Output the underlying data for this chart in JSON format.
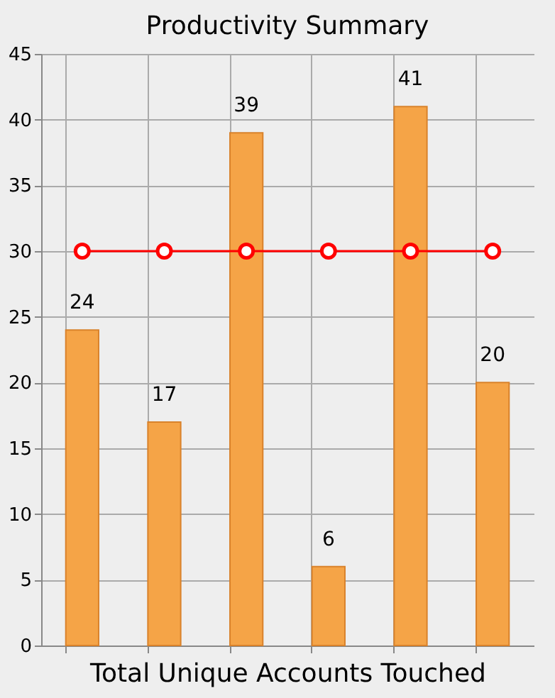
{
  "chart_data": {
    "type": "bar",
    "title": "Productivity Summary",
    "xlabel": "Total Unique Accounts Touched",
    "categories": [
      null,
      null,
      null,
      null,
      null,
      null
    ],
    "series": [
      {
        "color": "#f5a447",
        "values": [
          24,
          17,
          39,
          6,
          41,
          20
        ],
        "value_labels": [
          "24",
          "17",
          "39",
          "6",
          "41",
          "20"
        ]
      },
      {
        "type": "line",
        "color": "#ff0000",
        "values": [
          30,
          30,
          30,
          30,
          30,
          30
        ],
        "marker": "circle"
      }
    ],
    "ylim": [
      0,
      45
    ],
    "yticks": [
      0,
      5,
      10,
      15,
      20,
      25,
      30,
      35,
      40,
      45
    ],
    "grid": true
  }
}
